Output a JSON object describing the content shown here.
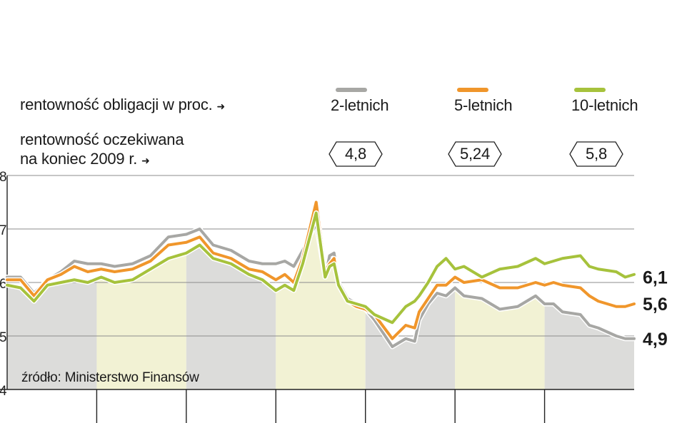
{
  "header": {
    "yield_label": "rentowność obligacji w proc.",
    "expected_label_line1": "rentowność oczekiwana",
    "expected_label_line2": "na koniec 2009 r.",
    "arrow": "➜"
  },
  "legend": [
    {
      "name": "2-letnich",
      "color": "#a7a7a4",
      "expected": "4,8"
    },
    {
      "name": "5-letnich",
      "color": "#f0962b",
      "expected": "5,24"
    },
    {
      "name": "10-letnich",
      "color": "#a6c23c",
      "expected": "5,8"
    }
  ],
  "source": "źródło: Ministerstwo Finansów",
  "chart_data": {
    "type": "line",
    "ylim": [
      4,
      8
    ],
    "yticks": [
      "4",
      "5",
      "6",
      "7",
      "8"
    ],
    "x_range": [
      0,
      7
    ],
    "quarter_boundaries": [
      1,
      2,
      3,
      4,
      5,
      6
    ],
    "quarter_fills": [
      "#dcdcda",
      "#f2f2d4",
      "#dcdcda",
      "#f2f2d4",
      "#dcdcda",
      "#f2f2d4",
      "#dcdcda"
    ],
    "end_labels": [
      "6,1",
      "5,6",
      "4,9"
    ],
    "series": [
      {
        "name": "2-letnich",
        "color": "#a7a7a4",
        "x": [
          0.0,
          0.15,
          0.3,
          0.45,
          0.6,
          0.75,
          0.9,
          1.05,
          1.2,
          1.4,
          1.6,
          1.8,
          2.0,
          2.15,
          2.3,
          2.5,
          2.7,
          2.85,
          3.0,
          3.1,
          3.2,
          3.3,
          3.45,
          3.55,
          3.6,
          3.65,
          3.7,
          3.8,
          3.9,
          4.0,
          4.1,
          4.3,
          4.45,
          4.55,
          4.6,
          4.7,
          4.8,
          4.9,
          5.0,
          5.1,
          5.3,
          5.5,
          5.7,
          5.9,
          6.0,
          6.1,
          6.2,
          6.4,
          6.5,
          6.6,
          6.8,
          6.9,
          7.0
        ],
        "y": [
          6.1,
          6.1,
          5.8,
          6.05,
          6.2,
          6.4,
          6.35,
          6.35,
          6.3,
          6.35,
          6.5,
          6.85,
          6.9,
          7.0,
          6.7,
          6.6,
          6.4,
          6.35,
          6.35,
          6.4,
          6.3,
          6.6,
          7.1,
          6.1,
          6.5,
          6.55,
          6.0,
          5.7,
          5.6,
          5.5,
          5.3,
          4.8,
          4.95,
          4.9,
          5.3,
          5.6,
          5.8,
          5.75,
          5.9,
          5.75,
          5.7,
          5.5,
          5.55,
          5.75,
          5.6,
          5.6,
          5.45,
          5.4,
          5.2,
          5.15,
          5.0,
          4.95,
          4.95
        ]
      },
      {
        "name": "5-letnich",
        "color": "#f0962b",
        "x": [
          0.0,
          0.15,
          0.3,
          0.45,
          0.6,
          0.75,
          0.9,
          1.05,
          1.2,
          1.4,
          1.6,
          1.8,
          2.0,
          2.15,
          2.3,
          2.5,
          2.7,
          2.85,
          3.0,
          3.1,
          3.2,
          3.3,
          3.45,
          3.55,
          3.6,
          3.65,
          3.7,
          3.8,
          3.9,
          4.0,
          4.1,
          4.3,
          4.45,
          4.55,
          4.6,
          4.7,
          4.8,
          4.9,
          5.0,
          5.1,
          5.3,
          5.5,
          5.7,
          5.9,
          6.0,
          6.1,
          6.2,
          6.4,
          6.5,
          6.6,
          6.8,
          6.9,
          7.0
        ],
        "y": [
          6.05,
          6.05,
          5.75,
          6.05,
          6.15,
          6.3,
          6.2,
          6.25,
          6.2,
          6.25,
          6.4,
          6.7,
          6.75,
          6.85,
          6.55,
          6.45,
          6.25,
          6.2,
          6.05,
          6.15,
          6.0,
          6.45,
          7.5,
          6.2,
          6.35,
          6.45,
          5.95,
          5.65,
          5.55,
          5.5,
          5.4,
          4.95,
          5.2,
          5.15,
          5.45,
          5.7,
          5.95,
          5.95,
          6.1,
          6.0,
          6.05,
          5.9,
          5.9,
          6.0,
          5.95,
          6.0,
          5.95,
          5.9,
          5.75,
          5.65,
          5.55,
          5.55,
          5.6
        ]
      },
      {
        "name": "10-letnich",
        "color": "#a6c23c",
        "x": [
          0.0,
          0.15,
          0.3,
          0.45,
          0.6,
          0.75,
          0.9,
          1.05,
          1.2,
          1.4,
          1.6,
          1.8,
          2.0,
          2.15,
          2.3,
          2.5,
          2.7,
          2.85,
          3.0,
          3.1,
          3.2,
          3.3,
          3.45,
          3.55,
          3.6,
          3.65,
          3.7,
          3.8,
          3.9,
          4.0,
          4.1,
          4.3,
          4.45,
          4.55,
          4.6,
          4.7,
          4.8,
          4.9,
          5.0,
          5.1,
          5.3,
          5.5,
          5.7,
          5.9,
          6.0,
          6.1,
          6.2,
          6.4,
          6.5,
          6.6,
          6.8,
          6.9,
          7.0
        ],
        "y": [
          5.95,
          5.9,
          5.65,
          5.95,
          6.0,
          6.05,
          6.0,
          6.1,
          6.0,
          6.05,
          6.25,
          6.45,
          6.55,
          6.7,
          6.45,
          6.35,
          6.15,
          6.05,
          5.85,
          5.95,
          5.85,
          6.35,
          7.3,
          6.1,
          6.3,
          6.35,
          5.95,
          5.65,
          5.6,
          5.55,
          5.4,
          5.25,
          5.55,
          5.65,
          5.75,
          6.0,
          6.3,
          6.45,
          6.25,
          6.3,
          6.1,
          6.25,
          6.3,
          6.45,
          6.35,
          6.4,
          6.45,
          6.5,
          6.3,
          6.25,
          6.2,
          6.1,
          6.15
        ]
      }
    ]
  }
}
